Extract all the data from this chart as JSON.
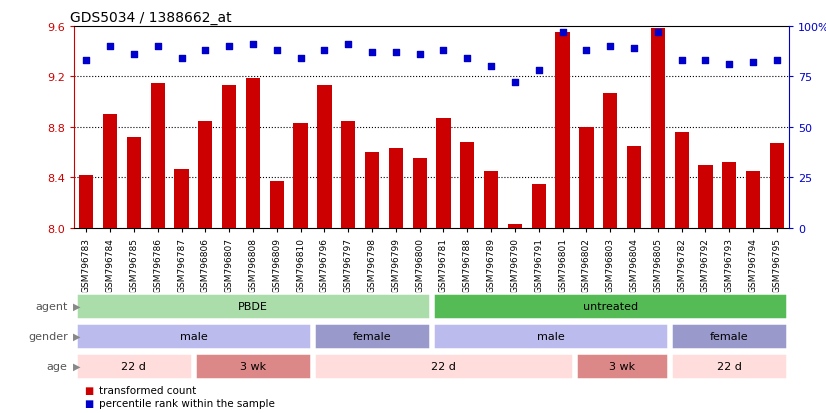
{
  "title": "GDS5034 / 1388662_at",
  "samples": [
    "GSM796783",
    "GSM796784",
    "GSM796785",
    "GSM796786",
    "GSM796787",
    "GSM796806",
    "GSM796807",
    "GSM796808",
    "GSM796809",
    "GSM796810",
    "GSM796796",
    "GSM796797",
    "GSM796798",
    "GSM796799",
    "GSM796800",
    "GSM796781",
    "GSM796788",
    "GSM796789",
    "GSM796790",
    "GSM796791",
    "GSM796801",
    "GSM796802",
    "GSM796803",
    "GSM796804",
    "GSM796805",
    "GSM796782",
    "GSM796792",
    "GSM796793",
    "GSM796794",
    "GSM796795"
  ],
  "bar_values": [
    8.42,
    8.9,
    8.72,
    9.15,
    8.47,
    8.85,
    9.13,
    9.19,
    8.37,
    8.83,
    9.13,
    8.85,
    8.6,
    8.63,
    8.55,
    8.87,
    8.68,
    8.45,
    8.03,
    8.35,
    9.55,
    8.8,
    9.07,
    8.65,
    9.58,
    8.76,
    8.5,
    8.52,
    8.45,
    8.67
  ],
  "percentile_values": [
    83,
    90,
    86,
    90,
    84,
    88,
    90,
    91,
    88,
    84,
    88,
    91,
    87,
    87,
    86,
    88,
    84,
    80,
    72,
    78,
    97,
    88,
    90,
    89,
    97,
    83,
    83,
    81,
    82,
    83
  ],
  "ylim_left": [
    8.0,
    9.6
  ],
  "ylim_right": [
    0,
    100
  ],
  "yticks_left": [
    8.0,
    8.4,
    8.8,
    9.2,
    9.6
  ],
  "yticks_right": [
    0,
    25,
    50,
    75,
    100
  ],
  "ytick_labels_right": [
    "0",
    "25",
    "50",
    "75",
    "100%"
  ],
  "bar_color": "#cc0000",
  "dot_color": "#0000cc",
  "agent_groups": [
    {
      "label": "PBDE",
      "start": 0,
      "end": 15,
      "color": "#aaddaa"
    },
    {
      "label": "untreated",
      "start": 15,
      "end": 30,
      "color": "#55bb55"
    }
  ],
  "gender_groups": [
    {
      "label": "male",
      "start": 0,
      "end": 10,
      "color": "#bbbbee"
    },
    {
      "label": "female",
      "start": 10,
      "end": 15,
      "color": "#9999cc"
    },
    {
      "label": "male",
      "start": 15,
      "end": 25,
      "color": "#bbbbee"
    },
    {
      "label": "female",
      "start": 25,
      "end": 30,
      "color": "#9999cc"
    }
  ],
  "age_groups": [
    {
      "label": "22 d",
      "start": 0,
      "end": 5,
      "color": "#ffdddd"
    },
    {
      "label": "3 wk",
      "start": 5,
      "end": 10,
      "color": "#dd8888"
    },
    {
      "label": "22 d",
      "start": 10,
      "end": 21,
      "color": "#ffdddd"
    },
    {
      "label": "3 wk",
      "start": 21,
      "end": 25,
      "color": "#dd8888"
    },
    {
      "label": "22 d",
      "start": 25,
      "end": 30,
      "color": "#ffdddd"
    }
  ],
  "legend_items": [
    {
      "label": "transformed count",
      "color": "#cc0000",
      "marker": "s"
    },
    {
      "label": "percentile rank within the sample",
      "color": "#0000cc",
      "marker": "s"
    }
  ],
  "row_labels_order": [
    "agent",
    "gender",
    "age"
  ],
  "background_color": "#ffffff",
  "title_fontsize": 10,
  "tick_fontsize": 6.5,
  "group_label_fontsize": 8,
  "row_label_fontsize": 8,
  "legend_fontsize": 7.5
}
